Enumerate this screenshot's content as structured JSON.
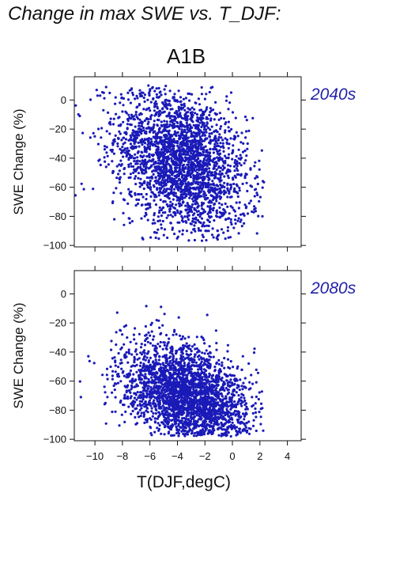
{
  "figure": {
    "title": "Change in max SWE vs. T_DJF:",
    "subtitle": "A1B"
  },
  "colors": {
    "point": "#1a1ab8",
    "label": "#2222aa",
    "axis": "#111111"
  },
  "chart_data": [
    {
      "type": "scatter",
      "panel_label": "2040s",
      "xlabel": "",
      "ylabel": "SWE Change (%)",
      "xlim": [
        -11.5,
        5
      ],
      "ylim": [
        -101,
        16
      ],
      "yticks": [
        0,
        -20,
        -40,
        -60,
        -80,
        -100
      ],
      "cluster": {
        "x_center": -3.7,
        "x_spread": 2.4,
        "y_center": -42,
        "y_spread": 24,
        "slope": -3.5,
        "n_points": 2600,
        "x_range": [
          -11.5,
          2.3
        ],
        "y_range": [
          -97,
          10
        ]
      }
    },
    {
      "type": "scatter",
      "panel_label": "2080s",
      "xlabel": "T(DJF,degC)",
      "ylabel": "SWE Change (%)",
      "xlim": [
        -11.5,
        5
      ],
      "ylim": [
        -101,
        16
      ],
      "xticks": [
        -10,
        -8,
        -6,
        -4,
        -2,
        0,
        2,
        4
      ],
      "yticks": [
        0,
        -20,
        -40,
        -60,
        -80,
        -100
      ],
      "cluster": {
        "x_center": -3.3,
        "x_spread": 2.3,
        "y_center": -70,
        "y_spread": 17,
        "slope": -3.0,
        "n_points": 2600,
        "x_range": [
          -11.5,
          2.3
        ],
        "y_range": [
          -98,
          2
        ]
      }
    }
  ]
}
